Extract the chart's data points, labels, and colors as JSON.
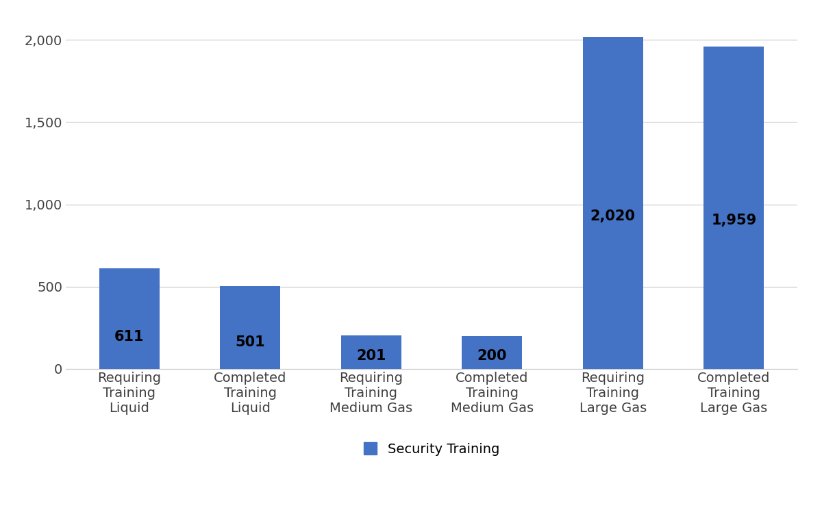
{
  "categories": [
    "Requiring\nTraining\nLiquid",
    "Completed\nTraining\nLiquid",
    "Requiring\nTraining\nMedium Gas",
    "Completed\nTraining\nMedium Gas",
    "Requiring\nTraining\nLarge Gas",
    "Completed\nTraining\nLarge Gas"
  ],
  "values": [
    611,
    501,
    201,
    200,
    2020,
    1959
  ],
  "bar_color": "#4472C4",
  "bar_labels": [
    "611",
    "501",
    "201",
    "200",
    "2,020",
    "1,959"
  ],
  "label_color": "#000000",
  "label_fontsize": 15,
  "label_fontweight": "bold",
  "yticks": [
    0,
    500,
    1000,
    1500,
    2000
  ],
  "ytick_labels": [
    "0",
    "500",
    "1,000",
    "1,500",
    "2,000"
  ],
  "ylim": [
    0,
    2150
  ],
  "background_color": "#ffffff",
  "grid_color": "#c8c8c8",
  "legend_label": "Security Training",
  "legend_marker_color": "#4472C4",
  "tick_label_fontsize": 14,
  "bar_width": 0.5
}
